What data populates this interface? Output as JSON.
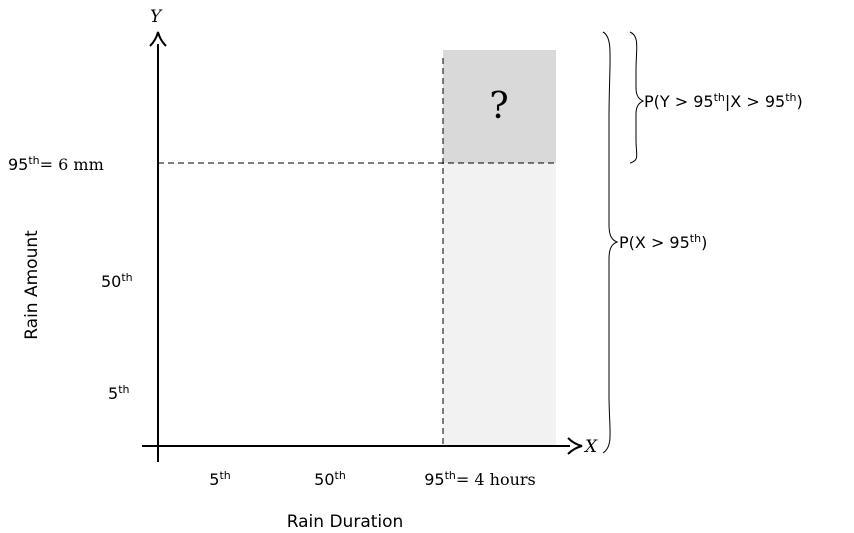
{
  "axes": {
    "x_axis_symbol": "X",
    "y_axis_symbol": "Y",
    "x_label": "Rain Duration",
    "y_label": "Rain Amount"
  },
  "x_ticks": {
    "p5": {
      "base": "5",
      "sup": "th",
      "suffix": ""
    },
    "p50": {
      "base": "50",
      "sup": "th",
      "suffix": ""
    },
    "p95": {
      "base": "95",
      "sup": "th",
      "suffix": "= 4 hours"
    }
  },
  "y_ticks": {
    "p5": {
      "base": "5",
      "sup": "th",
      "suffix": ""
    },
    "p50": {
      "base": "50",
      "sup": "th",
      "suffix": ""
    },
    "p95": {
      "base": "95",
      "sup": "th",
      "suffix": "= 6 mm"
    }
  },
  "regions": {
    "question_mark": "?",
    "joint_fill_color": "#d9d9d9",
    "marginal_fill_color": "#f2f2f2"
  },
  "annotations": {
    "conditional": {
      "part1": "P(Y > 95",
      "sup1": "th",
      "part2": "|X > 95",
      "sup2": "th",
      "part3": ")"
    },
    "marginal": {
      "part1": "P(X > 95",
      "sup1": "th",
      "part2": ")"
    }
  }
}
